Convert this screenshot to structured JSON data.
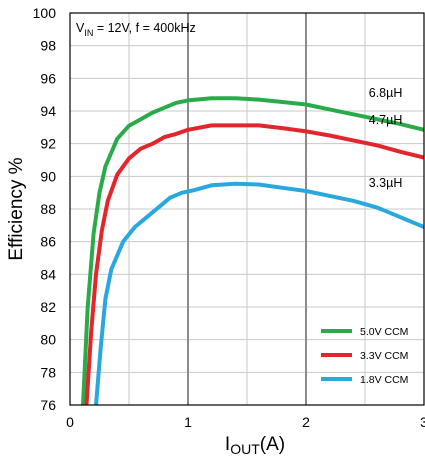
{
  "chart_data": {
    "type": "line",
    "xlabel": "IOUT(A)",
    "xlabel_main": "I",
    "xlabel_sub": "OUT",
    "xlabel_tail": "(A)",
    "ylabel": "Efficiency %",
    "xlim": [
      0,
      3
    ],
    "ylim": [
      76,
      100
    ],
    "xticks": [
      0,
      1,
      2,
      3
    ],
    "xtick_labels": [
      "0",
      "1",
      "2",
      "3"
    ],
    "yticks": [
      76,
      78,
      80,
      82,
      84,
      86,
      88,
      90,
      92,
      94,
      96,
      98,
      100
    ],
    "ytick_labels": [
      "76",
      "78",
      "80",
      "82",
      "84",
      "86",
      "88",
      "90",
      "92",
      "94",
      "96",
      "98",
      "100"
    ],
    "grid": true,
    "legend_position": "bottom-right",
    "condition_label": {
      "v": "V",
      "v_sub": "IN",
      "rest": " = 12V, f = 400kHz"
    },
    "series": [
      {
        "name": "5.0V CCM",
        "color": "#2aab4a",
        "points": [
          [
            0.11,
            76
          ],
          [
            0.15,
            82
          ],
          [
            0.2,
            86.5
          ],
          [
            0.25,
            89
          ],
          [
            0.3,
            90.6
          ],
          [
            0.4,
            92.3
          ],
          [
            0.5,
            93.1
          ],
          [
            0.6,
            93.5
          ],
          [
            0.7,
            93.9
          ],
          [
            0.8,
            94.2
          ],
          [
            0.9,
            94.5
          ],
          [
            1.0,
            94.65
          ],
          [
            1.2,
            94.78
          ],
          [
            1.4,
            94.78
          ],
          [
            1.6,
            94.7
          ],
          [
            1.8,
            94.55
          ],
          [
            2.0,
            94.4
          ],
          [
            2.2,
            94.1
          ],
          [
            2.4,
            93.8
          ],
          [
            2.6,
            93.5
          ],
          [
            2.8,
            93.2
          ],
          [
            3.0,
            92.85
          ]
        ]
      },
      {
        "name": "3.3V CCM",
        "color": "#e3262b",
        "points": [
          [
            0.14,
            76
          ],
          [
            0.18,
            80.5
          ],
          [
            0.22,
            84
          ],
          [
            0.27,
            86.7
          ],
          [
            0.32,
            88.5
          ],
          [
            0.4,
            90.1
          ],
          [
            0.5,
            91.1
          ],
          [
            0.6,
            91.7
          ],
          [
            0.7,
            92.0
          ],
          [
            0.8,
            92.4
          ],
          [
            0.9,
            92.6
          ],
          [
            1.0,
            92.85
          ],
          [
            1.2,
            93.12
          ],
          [
            1.4,
            93.12
          ],
          [
            1.6,
            93.12
          ],
          [
            1.8,
            92.95
          ],
          [
            2.0,
            92.75
          ],
          [
            2.2,
            92.5
          ],
          [
            2.4,
            92.2
          ],
          [
            2.6,
            91.9
          ],
          [
            2.8,
            91.5
          ],
          [
            3.0,
            91.15
          ]
        ]
      },
      {
        "name": "1.8V CCM",
        "color": "#29a8e0",
        "points": [
          [
            0.22,
            76
          ],
          [
            0.26,
            79.5
          ],
          [
            0.3,
            82.5
          ],
          [
            0.35,
            84.3
          ],
          [
            0.45,
            86.0
          ],
          [
            0.55,
            86.9
          ],
          [
            0.65,
            87.5
          ],
          [
            0.75,
            88.1
          ],
          [
            0.85,
            88.7
          ],
          [
            0.95,
            89.0
          ],
          [
            1.05,
            89.15
          ],
          [
            1.2,
            89.45
          ],
          [
            1.4,
            89.55
          ],
          [
            1.6,
            89.5
          ],
          [
            1.8,
            89.3
          ],
          [
            2.0,
            89.1
          ],
          [
            2.2,
            88.8
          ],
          [
            2.4,
            88.5
          ],
          [
            2.6,
            88.1
          ],
          [
            2.8,
            87.5
          ],
          [
            3.0,
            86.9
          ]
        ]
      }
    ],
    "annotations": [
      {
        "text": "6.8µH",
        "x": 2.32,
        "y": 95.1
      },
      {
        "text": "4.7µH",
        "x": 2.32,
        "y": 93.45
      },
      {
        "text": "3.3µH",
        "x": 2.32,
        "y": 89.6
      }
    ]
  }
}
